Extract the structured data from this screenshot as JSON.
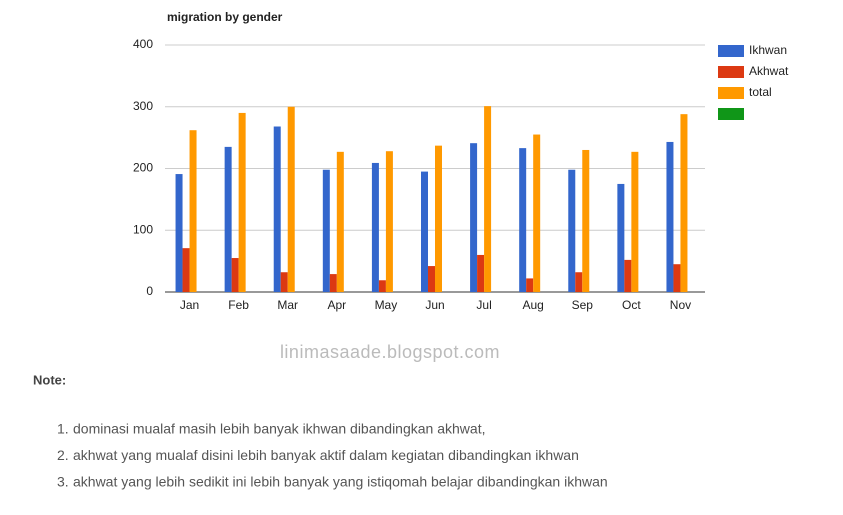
{
  "chart_data": {
    "type": "bar",
    "title": "migration by gender",
    "categories": [
      "Jan",
      "Feb",
      "Mar",
      "Apr",
      "May",
      "Jun",
      "Jul",
      "Aug",
      "Sep",
      "Oct",
      "Nov"
    ],
    "series": [
      {
        "name": "Ikhwan",
        "color": "#3366cc",
        "values": [
          191,
          235,
          268,
          198,
          209,
          195,
          241,
          233,
          198,
          175,
          243
        ]
      },
      {
        "name": "Akhwat",
        "color": "#dc3912",
        "values": [
          71,
          55,
          32,
          29,
          19,
          42,
          60,
          22,
          32,
          52,
          45
        ]
      },
      {
        "name": "total",
        "color": "#ff9900",
        "values": [
          262,
          290,
          300,
          227,
          228,
          237,
          301,
          255,
          230,
          227,
          288
        ]
      },
      {
        "name": null,
        "color": "#109618",
        "values": [
          null,
          null,
          null,
          null,
          null,
          null,
          null,
          null,
          null,
          null,
          null
        ]
      }
    ],
    "ylim": [
      0,
      400
    ],
    "yticks": [
      0,
      100,
      200,
      300,
      400
    ],
    "grid": true,
    "legend": "right"
  },
  "watermark": "linimasaade.blogspot.com",
  "note": {
    "heading": "Note:",
    "items": [
      "dominasi mualaf masih lebih banyak ikhwan dibandingkan akhwat,",
      "akhwat yang mualaf disini lebih banyak aktif dalam kegiatan dibandingkan ikhwan",
      "akhwat yang lebih sedikit ini lebih banyak yang istiqomah belajar dibandingkan ikhwan"
    ]
  }
}
